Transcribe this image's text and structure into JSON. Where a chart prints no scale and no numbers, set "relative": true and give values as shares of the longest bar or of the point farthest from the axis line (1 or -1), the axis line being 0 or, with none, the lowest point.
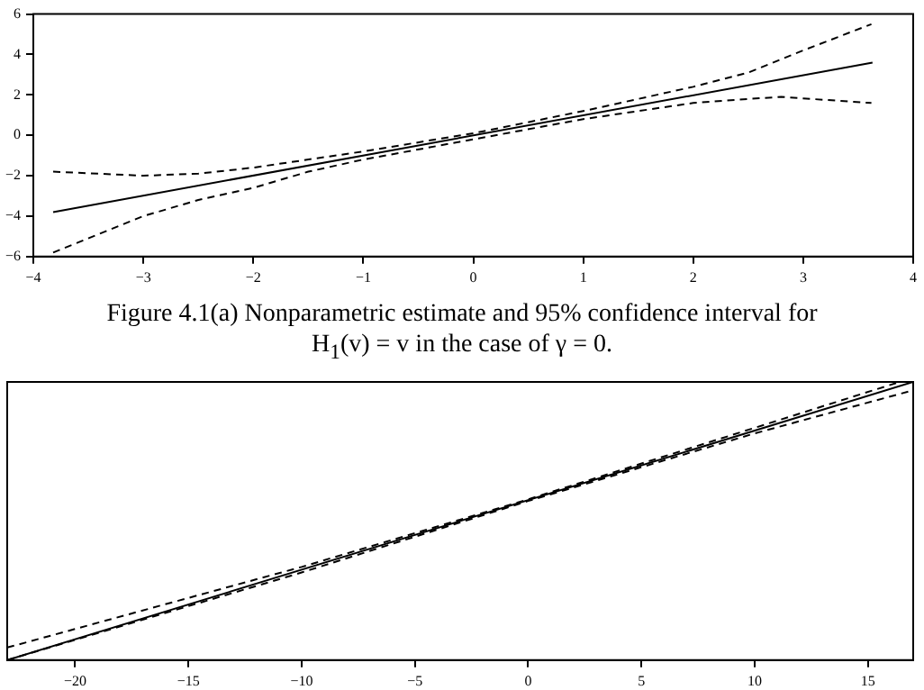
{
  "chart_data": [
    {
      "type": "line",
      "xlim": [
        -4,
        4
      ],
      "ylim": [
        -6,
        6
      ],
      "xticks": [
        -4,
        -3,
        -2,
        -1,
        0,
        1,
        2,
        3,
        4
      ],
      "yticks": [
        -6,
        -4,
        -2,
        0,
        2,
        4,
        6
      ],
      "grid": false,
      "legend": false,
      "marker": "none",
      "annotations": [
        "Figure 4.1(a) Nonparametric estimate and 95% confidence interval for H$_{1}$(v) = v in the case of γ = 0."
      ],
      "series": [
        {
          "color": "#000000",
          "line_style": "solid",
          "x": [
            -3.82,
            3.63
          ],
          "values": [
            -3.8,
            3.6
          ]
        },
        {
          "color": "#000000",
          "line_style": "dashed",
          "x": [
            -3.82,
            -3.0,
            -2.5,
            -2.0,
            -1.0,
            0,
            1,
            2,
            2.5,
            3,
            3.62
          ],
          "values": [
            -1.8,
            -2.0,
            -1.9,
            -1.6,
            -0.8,
            0.1,
            1.2,
            2.4,
            3.1,
            4.2,
            5.5
          ]
        },
        {
          "color": "#000000",
          "line_style": "dashed",
          "x": [
            -3.82,
            -3.0,
            -2.5,
            -2.0,
            -1.5,
            -1.0,
            0,
            1,
            2,
            2.5,
            2.8,
            3.62
          ],
          "values": [
            -5.8,
            -4.0,
            -3.2,
            -2.6,
            -1.8,
            -1.2,
            -0.2,
            0.8,
            1.6,
            1.8,
            1.9,
            1.6
          ]
        }
      ]
    },
    {
      "type": "line",
      "relative": true,
      "xlim": [
        -23,
        17
      ],
      "xticks": [
        -20,
        -15,
        -10,
        -5,
        0,
        5,
        10,
        15
      ],
      "grid": false,
      "legend": false,
      "marker": "none",
      "series": [
        {
          "color": "#000000",
          "line_style": "solid",
          "x": [
            -23,
            17
          ],
          "values": [
            0,
            1
          ]
        },
        {
          "color": "#000000",
          "line_style": "dashed",
          "x": [
            -23,
            -10,
            0,
            10,
            16.4
          ],
          "values": [
            0.045,
            0.335,
            0.578,
            0.835,
            1
          ]
        },
        {
          "color": "#000000",
          "line_style": "dashed",
          "x": [
            -23,
            -10,
            0,
            10,
            17
          ],
          "values": [
            0,
            0.315,
            0.572,
            0.815,
            0.97
          ]
        }
      ]
    }
  ]
}
